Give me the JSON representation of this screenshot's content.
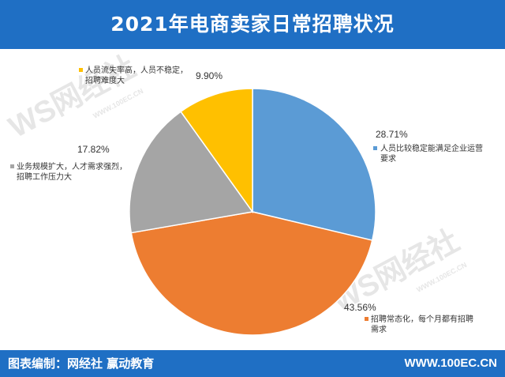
{
  "title": "2021年电商卖家日常招聘状况",
  "footer": {
    "credit": "图表编制：网经社  赢动教育",
    "site": "WWW.100EC.CN"
  },
  "chart_data": {
    "type": "pie",
    "slices": [
      {
        "label_lines": [
          "人员比较稳定能满足企业运营",
          "要求"
        ],
        "value": 28.71,
        "pct_label": "28.71%",
        "color": "#5b9bd5"
      },
      {
        "label_lines": [
          "招聘常态化，每个月都有招聘",
          "需求"
        ],
        "value": 43.56,
        "pct_label": "43.56%",
        "color": "#ed7d31"
      },
      {
        "label_lines": [
          "业务规模扩大，人才需求强烈，",
          "招聘工作压力大"
        ],
        "value": 17.82,
        "pct_label": "17.82%",
        "color": "#a5a5a5"
      },
      {
        "label_lines": [
          "人员流失率高，人员不稳定，",
          "招聘难度大"
        ],
        "value": 9.9,
        "pct_label": "9.90%",
        "color": "#ffc000"
      }
    ]
  },
  "watermark": {
    "text": "WS网经社",
    "url": "WWW.100EC.CN"
  }
}
